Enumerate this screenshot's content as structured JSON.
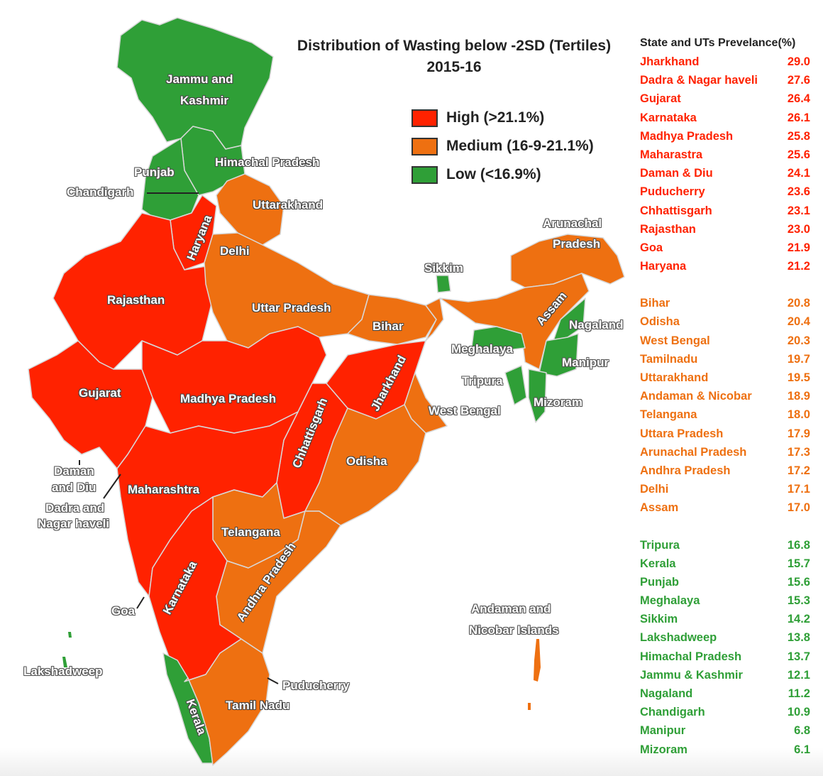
{
  "title": {
    "line1": "Distribution of Wasting below -2SD (Tertiles)",
    "line2": "2015-16"
  },
  "legend": [
    {
      "label": "High  (>21.1%)",
      "color": "#ff2200"
    },
    {
      "label": "Medium (16-9-21.1%)",
      "color": "#ee7011"
    },
    {
      "label": "Low (<16.9%)",
      "color": "#2f9f37"
    }
  ],
  "colors": {
    "high": "#ff2200",
    "medium": "#ee7011",
    "low": "#2f9f37",
    "border": "#cccccc"
  },
  "table": {
    "header": "State and UTs Prevelance(%)",
    "high": [
      {
        "name": "Jharkhand",
        "value": "29.0"
      },
      {
        "name": "Dadra & Nagar haveli",
        "value": "27.6"
      },
      {
        "name": "Gujarat",
        "value": "26.4"
      },
      {
        "name": "Karnataka",
        "value": "26.1"
      },
      {
        "name": "Madhya Pradesh",
        "value": "25.8"
      },
      {
        "name": "Maharastra",
        "value": "25.6"
      },
      {
        "name": "Daman & Diu",
        "value": "24.1"
      },
      {
        "name": "Puducherry",
        "value": "23.6"
      },
      {
        "name": "Chhattisgarh",
        "value": "23.1"
      },
      {
        "name": "Rajasthan",
        "value": "23.0"
      },
      {
        "name": "Goa",
        "value": "21.9"
      },
      {
        "name": "Haryana",
        "value": "21.2"
      }
    ],
    "medium": [
      {
        "name": "Bihar",
        "value": "20.8"
      },
      {
        "name": "Odisha",
        "value": "20.4"
      },
      {
        "name": "West Bengal",
        "value": "20.3"
      },
      {
        "name": "Tamilnadu",
        "value": "19.7"
      },
      {
        "name": "Uttarakhand",
        "value": "19.5"
      },
      {
        "name": "Andaman & Nicobar",
        "value": "18.9"
      },
      {
        "name": "Telangana",
        "value": "18.0"
      },
      {
        "name": "Uttara Pradesh",
        "value": "17.9"
      },
      {
        "name": "Arunachal Pradesh",
        "value": "17.3"
      },
      {
        "name": "Andhra Pradesh",
        "value": "17.2"
      },
      {
        "name": "Delhi",
        "value": "17.1"
      },
      {
        "name": "Assam",
        "value": "17.0"
      }
    ],
    "low": [
      {
        "name": "Tripura",
        "value": "16.8"
      },
      {
        "name": "Kerala",
        "value": "15.7"
      },
      {
        "name": "Punjab",
        "value": "15.6"
      },
      {
        "name": "Meghalaya",
        "value": "15.3"
      },
      {
        "name": "Sikkim",
        "value": "14.2"
      },
      {
        "name": "Lakshadweep",
        "value": "13.8"
      },
      {
        "name": "Himachal Pradesh",
        "value": "13.7"
      },
      {
        "name": "Jammu & Kashmir",
        "value": "12.1"
      },
      {
        "name": "Nagaland",
        "value": "11.2"
      },
      {
        "name": "Chandigarh",
        "value": "10.9"
      },
      {
        "name": "Manipur",
        "value": "6.8"
      },
      {
        "name": "Mizoram",
        "value": "6.1"
      }
    ]
  },
  "map_labels": {
    "jammu_kashmir_1": "Jammu and",
    "jammu_kashmir_2": "Kashmir",
    "himachal": "Himachal Pradesh",
    "punjab": "Punjab",
    "chandigarh": "Chandigarh",
    "uttarakhand": "Uttarakhand",
    "haryana": "Haryana",
    "delhi": "Delhi",
    "rajasthan": "Rajasthan",
    "uttar_pradesh": "Uttar Pradesh",
    "bihar": "Bihar",
    "sikkim": "Sikkim",
    "arunachal_1": "Arunachal",
    "arunachal_2": "Pradesh",
    "assam": "Assam",
    "nagaland": "Nagaland",
    "meghalaya": "Meghalaya",
    "manipur": "Manipur",
    "tripura": "Tripura",
    "mizoram": "Mizoram",
    "gujarat": "Gujarat",
    "madhya_pradesh": "Madhya Pradesh",
    "jharkhand": "Jharkhand",
    "chhattisgarh": "Chhattisgarh",
    "west_bengal": "West Bengal",
    "odisha": "Odisha",
    "daman_1": "Daman",
    "daman_2": "and Diu",
    "dadra_1": "Dadra and",
    "dadra_2": "Nagar haveli",
    "maharashtra": "Maharashtra",
    "telangana": "Telangana",
    "andhra": "Andhra Pradesh",
    "karnataka": "Karnataka",
    "goa": "Goa",
    "lakshadweep": "Lakshadweep",
    "andaman_1": "Andaman and",
    "andaman_2": "Nicobar Islands",
    "puducherry": "Puducherry",
    "tamil_nadu": "Tamil Nadu",
    "kerala": "Kerala"
  },
  "chart_data": {
    "type": "table",
    "title": "Distribution of Wasting below -2SD (Tertiles) 2015-16",
    "legend": [
      "High (>21.1%)",
      "Medium (16-9-21.1%)",
      "Low (<16.9%)"
    ],
    "columns": [
      "State and UTs",
      "Prevelance(%)"
    ],
    "series": [
      {
        "name": "High",
        "categories": [
          "Jharkhand",
          "Dadra & Nagar haveli",
          "Gujarat",
          "Karnataka",
          "Madhya Pradesh",
          "Maharastra",
          "Daman & Diu",
          "Puducherry",
          "Chhattisgarh",
          "Rajasthan",
          "Goa",
          "Haryana"
        ],
        "values": [
          29.0,
          27.6,
          26.4,
          26.1,
          25.8,
          25.6,
          24.1,
          23.6,
          23.1,
          23.0,
          21.9,
          21.2
        ]
      },
      {
        "name": "Medium",
        "categories": [
          "Bihar",
          "Odisha",
          "West Bengal",
          "Tamilnadu",
          "Uttarakhand",
          "Andaman & Nicobar",
          "Telangana",
          "Uttara Pradesh",
          "Arunachal Pradesh",
          "Andhra Pradesh",
          "Delhi",
          "Assam"
        ],
        "values": [
          20.8,
          20.4,
          20.3,
          19.7,
          19.5,
          18.9,
          18.0,
          17.9,
          17.3,
          17.2,
          17.1,
          17.0
        ]
      },
      {
        "name": "Low",
        "categories": [
          "Tripura",
          "Kerala",
          "Punjab",
          "Meghalaya",
          "Sikkim",
          "Lakshadweep",
          "Himachal Pradesh",
          "Jammu & Kashmir",
          "Nagaland",
          "Chandigarh",
          "Manipur",
          "Mizoram"
        ],
        "values": [
          16.8,
          15.7,
          15.6,
          15.3,
          14.2,
          13.8,
          13.7,
          12.1,
          11.2,
          10.9,
          6.8,
          6.1
        ]
      }
    ]
  }
}
